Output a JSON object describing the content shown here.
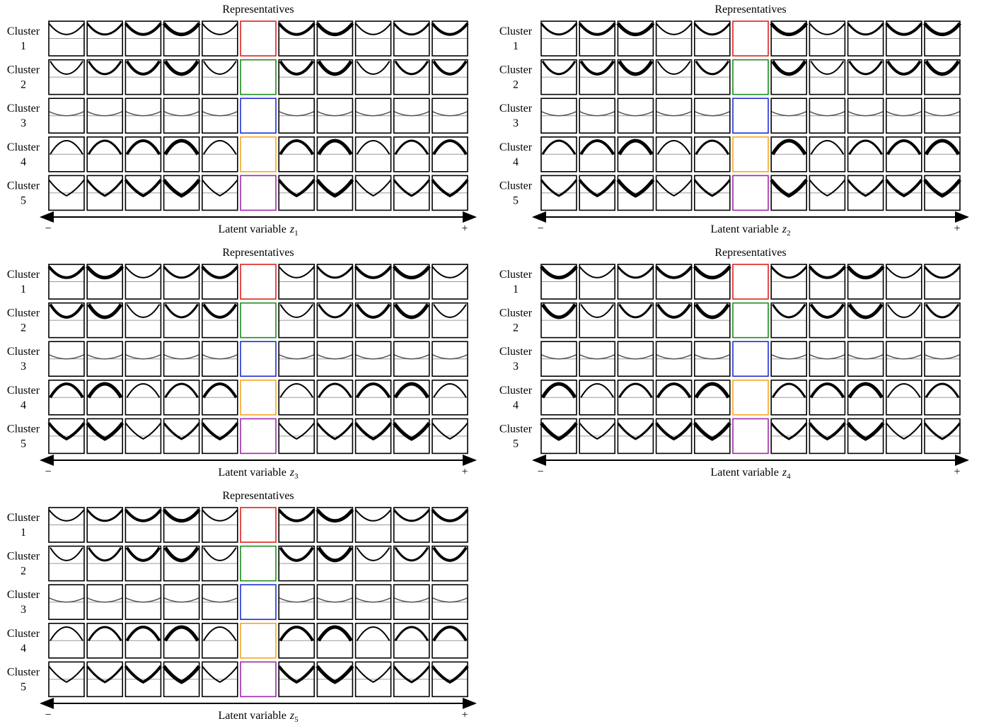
{
  "panels": [
    {
      "title": "Representatives",
      "rows": [
        {
          "label": "Cluster",
          "number": "1"
        },
        {
          "label": "Cluster",
          "number": "2"
        },
        {
          "label": "Cluster",
          "number": "3"
        },
        {
          "label": "Cluster",
          "number": "4"
        },
        {
          "label": "Cluster",
          "number": "5"
        }
      ],
      "axis": {
        "minus": "−",
        "label": "Latent variable",
        "variable": "z",
        "subscript": "1",
        "plus": "+"
      }
    },
    {
      "title": "Representatives",
      "rows": [
        {
          "label": "Cluster",
          "number": "1"
        },
        {
          "label": "Cluster",
          "number": "2"
        },
        {
          "label": "Cluster",
          "number": "3"
        },
        {
          "label": "Cluster",
          "number": "4"
        },
        {
          "label": "Cluster",
          "number": "5"
        }
      ],
      "axis": {
        "minus": "−",
        "label": "Latent variable",
        "variable": "z",
        "subscript": "2",
        "plus": "+"
      }
    },
    {
      "title": "Representatives",
      "rows": [
        {
          "label": "Cluster",
          "number": "1"
        },
        {
          "label": "Cluster",
          "number": "2"
        },
        {
          "label": "Cluster",
          "number": "3"
        },
        {
          "label": "Cluster",
          "number": "4"
        },
        {
          "label": "Cluster",
          "number": "5"
        }
      ],
      "axis": {
        "minus": "−",
        "label": "Latent variable",
        "variable": "z",
        "subscript": "3",
        "plus": "+"
      }
    },
    {
      "title": "Representatives",
      "rows": [
        {
          "label": "Cluster",
          "number": "1"
        },
        {
          "label": "Cluster",
          "number": "2"
        },
        {
          "label": "Cluster",
          "number": "3"
        },
        {
          "label": "Cluster",
          "number": "4"
        },
        {
          "label": "Cluster",
          "number": "5"
        }
      ],
      "axis": {
        "minus": "−",
        "label": "Latent variable",
        "variable": "z",
        "subscript": "4",
        "plus": "+"
      }
    },
    {
      "title": "Representatives",
      "rows": [
        {
          "label": "Cluster",
          "number": "1"
        },
        {
          "label": "Cluster",
          "number": "2"
        },
        {
          "label": "Cluster",
          "number": "3"
        },
        {
          "label": "Cluster",
          "number": "4"
        },
        {
          "label": "Cluster",
          "number": "5"
        }
      ],
      "axis": {
        "minus": "−",
        "label": "Latent variable",
        "variable": "z",
        "subscript": "5",
        "plus": "+"
      }
    }
  ]
}
